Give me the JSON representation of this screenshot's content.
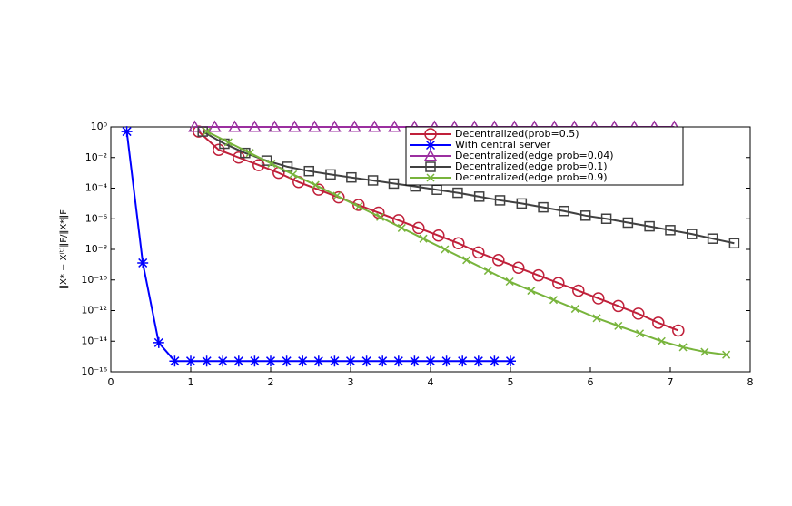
{
  "chart_data": {
    "type": "line",
    "y_label": "‖X* − X⁽ᵗ⁾‖F/‖X*‖F",
    "log_y": true,
    "grid": false,
    "legend": "upper right",
    "xlim": [
      0,
      8
    ],
    "xticks": [
      0,
      1,
      2,
      3,
      4,
      5,
      6,
      7,
      8
    ],
    "ylim": [
      1e-16,
      1
    ],
    "yticks": [
      {
        "value": 1,
        "label": "10⁰"
      },
      {
        "value": 0.01,
        "label": "10⁻²"
      },
      {
        "value": 0.0001,
        "label": "10⁻⁴"
      },
      {
        "value": 1e-06,
        "label": "10⁻⁶"
      },
      {
        "value": 1e-08,
        "label": "10⁻⁸"
      },
      {
        "value": 1e-10,
        "label": "10⁻¹⁰"
      },
      {
        "value": 1e-12,
        "label": "10⁻¹²"
      },
      {
        "value": 1e-14,
        "label": "10⁻¹⁴"
      },
      {
        "value": 1e-16,
        "label": "10⁻¹⁶"
      }
    ],
    "series": [
      {
        "name": "Decentralized(prob=0.5)",
        "color": "#c0203a",
        "marker": "circle",
        "x": [
          1.1,
          1.35,
          1.6,
          1.85,
          2.1,
          2.35,
          2.6,
          2.85,
          3.1,
          3.35,
          3.6,
          3.85,
          4.1,
          4.35,
          4.6,
          4.85,
          5.1,
          5.35,
          5.6,
          5.85,
          6.1,
          6.35,
          6.6,
          6.85,
          7.1
        ],
        "values": [
          0.5,
          0.032,
          0.01,
          0.0032,
          0.001,
          0.00025,
          8e-05,
          2.5e-05,
          8e-06,
          2.5e-06,
          8e-07,
          2.5e-07,
          8e-08,
          2.5e-08,
          6.3e-09,
          2e-09,
          6.3e-10,
          2e-10,
          6.3e-11,
          2e-11,
          6.3e-12,
          2e-12,
          6.3e-13,
          1.6e-13,
          5e-14
        ]
      },
      {
        "name": "With central server",
        "color": "#0000ff",
        "marker": "star",
        "x": [
          0.2,
          0.4,
          0.6,
          0.8,
          1.0,
          1.2,
          1.4,
          1.6,
          1.8,
          2.0,
          2.2,
          2.4,
          2.6,
          2.8,
          3.0,
          3.2,
          3.4,
          3.6,
          3.8,
          4.0,
          4.2,
          4.4,
          4.6,
          4.8,
          5.0
        ],
        "values": [
          0.5,
          1.3e-09,
          8e-15,
          5e-16,
          5e-16,
          5e-16,
          5e-16,
          5e-16,
          5e-16,
          5e-16,
          5e-16,
          5e-16,
          5e-16,
          5e-16,
          5e-16,
          5e-16,
          5e-16,
          5e-16,
          5e-16,
          5e-16,
          5e-16,
          5e-16,
          5e-16,
          5e-16,
          5e-16
        ]
      },
      {
        "name": "Decentralized(edge prob=0.04)",
        "color": "#9b2fa0",
        "marker": "triangle",
        "x": [
          1.05,
          1.3,
          1.55,
          1.8,
          2.05,
          2.3,
          2.55,
          2.8,
          3.05,
          3.3,
          3.55,
          3.8,
          4.05,
          4.3,
          4.55,
          4.8,
          5.05,
          5.3,
          5.55,
          5.8,
          6.05,
          6.3,
          6.55,
          6.8,
          7.05
        ],
        "values": [
          1,
          1,
          1,
          1,
          1,
          1,
          1,
          1,
          1,
          1,
          1,
          1,
          1,
          1,
          1,
          1,
          1,
          1,
          1,
          1,
          1,
          1,
          1,
          1,
          1
        ]
      },
      {
        "name": "Decentralized(edge prob=0.1)",
        "color": "#404040",
        "marker": "square",
        "x": [
          1.15,
          1.42,
          1.68,
          1.95,
          2.21,
          2.48,
          2.75,
          3.01,
          3.28,
          3.54,
          3.81,
          4.08,
          4.34,
          4.61,
          4.87,
          5.14,
          5.41,
          5.67,
          5.94,
          6.2,
          6.47,
          6.74,
          7.0,
          7.27,
          7.53,
          7.8
        ],
        "values": [
          0.5,
          0.08,
          0.02,
          0.0063,
          0.0025,
          0.0013,
          0.00079,
          0.0005,
          0.00032,
          0.0002,
          0.00013,
          7.9e-05,
          5e-05,
          2.8e-05,
          1.6e-05,
          1e-05,
          5.6e-06,
          3.2e-06,
          1.6e-06,
          1e-06,
          5.6e-07,
          3.2e-07,
          1.8e-07,
          1e-07,
          5e-08,
          2.5e-08
        ]
      },
      {
        "name": "Decentralized(edge prob=0.9)",
        "color": "#78b43c",
        "marker": "x",
        "x": [
          1.2,
          1.47,
          1.74,
          2.01,
          2.28,
          2.56,
          2.83,
          3.1,
          3.37,
          3.64,
          3.91,
          4.18,
          4.45,
          4.72,
          4.99,
          5.26,
          5.54,
          5.81,
          6.08,
          6.35,
          6.62,
          6.89,
          7.16,
          7.43,
          7.7
        ],
        "values": [
          0.5,
          0.1,
          0.02,
          0.004,
          0.00079,
          0.00016,
          3.2e-05,
          6.3e-06,
          1.3e-06,
          2.5e-07,
          5e-08,
          1e-08,
          2e-09,
          4e-10,
          7.9e-11,
          2e-11,
          5e-12,
          1.3e-12,
          3.2e-13,
          1e-13,
          3.2e-14,
          1e-14,
          4e-15,
          2e-15,
          1.3e-15
        ]
      }
    ]
  }
}
